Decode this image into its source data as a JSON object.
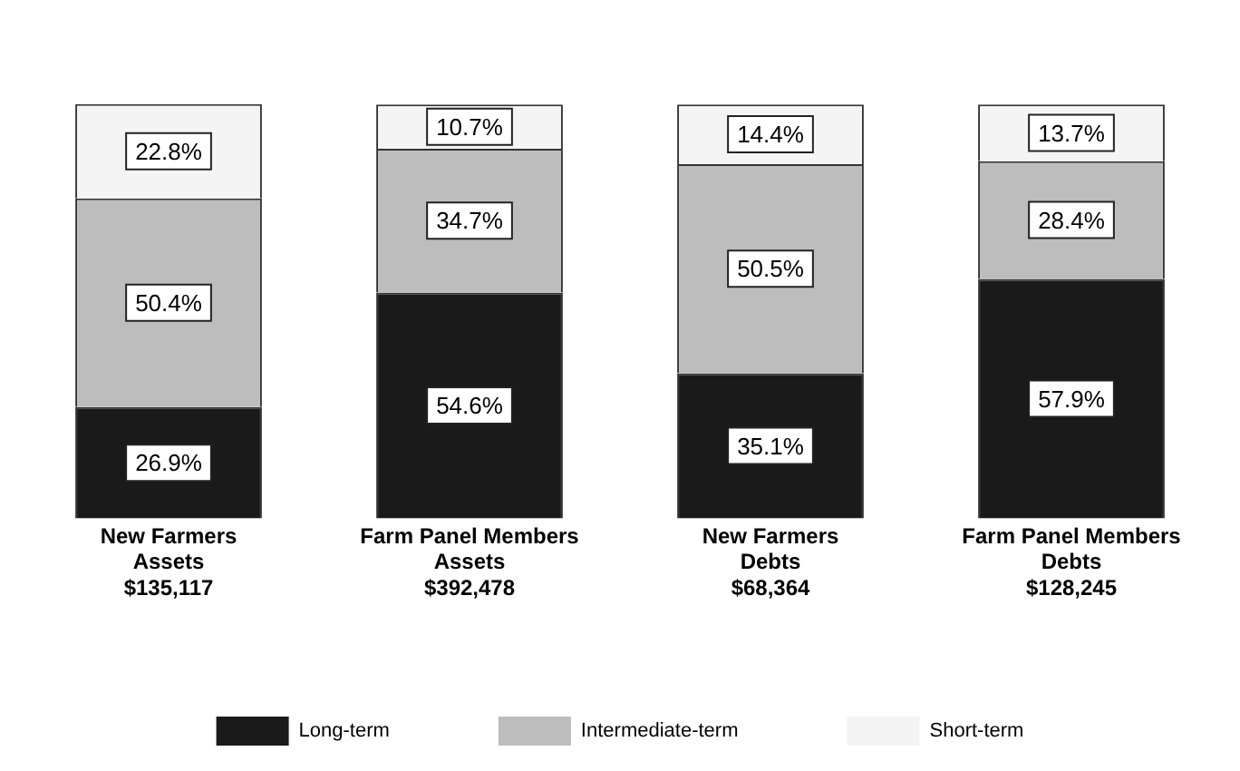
{
  "chart_data": {
    "type": "bar",
    "stacked": true,
    "categories": [
      "New Farmers\nAssets\n$135,117",
      "Farm Panel Members\nAssets\n$392,478",
      "New Farmers\nDebts\n$68,364",
      "Farm Panel Members\nDebts\n$128,245"
    ],
    "series": [
      {
        "name": "Long-term",
        "color": "#1a1a1a",
        "values": [
          26.9,
          54.6,
          35.1,
          57.9
        ],
        "value_labels": [
          "26.9%",
          "54.6%",
          "35.1%",
          "57.9%"
        ]
      },
      {
        "name": "Intermediate-term",
        "color": "#bdbdbd",
        "values": [
          50.4,
          34.7,
          50.5,
          28.4
        ],
        "value_labels": [
          "50.4%",
          "34.7%",
          "50.5%",
          "28.4%"
        ]
      },
      {
        "name": "Short-term",
        "color": "#f4f4f4",
        "values": [
          22.8,
          10.7,
          14.4,
          13.7
        ],
        "value_labels": [
          "22.8%",
          "10.7%",
          "14.4%",
          "13.7%"
        ]
      }
    ],
    "tick_labels": "x",
    "grid": false,
    "legend": "bottom"
  }
}
